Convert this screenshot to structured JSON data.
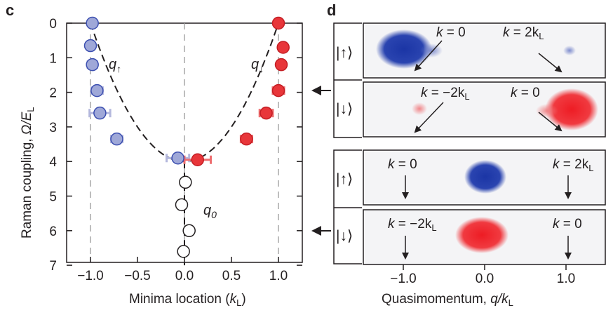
{
  "figure": {
    "panel_c_letter": "c",
    "panel_d_letter": "d",
    "colors": {
      "blue_fill": "#9fa8d8",
      "blue_edge": "#3c4fb0",
      "blue_bar": "#b4b8dd",
      "red_fill": "#e8363a",
      "red_edge": "#c41e24",
      "red_bar": "#ee6d6f",
      "open_fill": "#ffffff",
      "blue_cloud": "#1e3aa8",
      "red_cloud": "#ee1c24"
    }
  },
  "chart_data": [
    {
      "type": "scatter",
      "panel": "c",
      "xlabel": "Minima location (kL)",
      "xlabel_main": "Minima location (",
      "xlabel_k": "k",
      "xlabel_sub": "L",
      "xlabel_close": ")",
      "ylabel": "Raman coupling, Ω/EL",
      "ylabel_main": "Raman coupling, ",
      "ylabel_var": "Ω/E",
      "ylabel_sub": "L",
      "xlim": [
        -1.25,
        1.25
      ],
      "ylim": [
        7,
        0
      ],
      "y_inverted": true,
      "xticks": [
        -1.0,
        -0.5,
        0.0,
        0.5,
        1.0
      ],
      "xtick_labels": [
        "−1.0",
        "−0.5",
        "0.0",
        "0.5",
        "1.0"
      ],
      "yticks": [
        0,
        1,
        2,
        3,
        4,
        5,
        6,
        7
      ],
      "ytick_labels": [
        "0",
        "1",
        "2",
        "3",
        "4",
        "5",
        "6",
        "7"
      ],
      "dashed_verticals": [
        -1.0,
        0.0,
        1.0
      ],
      "series": [
        {
          "name": "q↑",
          "label_main": "q",
          "label_sub": "↑",
          "style": "blue",
          "points": [
            {
              "x": -0.98,
              "y": 0.0,
              "xerr": 0.02
            },
            {
              "x": -1.0,
              "y": 0.65,
              "xerr": 0.04
            },
            {
              "x": -0.98,
              "y": 1.2,
              "xerr": 0.05
            },
            {
              "x": -0.93,
              "y": 1.95,
              "xerr": 0.06
            },
            {
              "x": -0.9,
              "y": 2.6,
              "xerr": 0.11
            },
            {
              "x": -0.72,
              "y": 3.35,
              "xerr": 0.06
            },
            {
              "x": -0.07,
              "y": 3.9,
              "xerr": 0.12
            }
          ]
        },
        {
          "name": "q↓",
          "label_main": "q",
          "label_sub": "↓",
          "style": "red",
          "points": [
            {
              "x": 1.0,
              "y": 0.0,
              "xerr": 0.02
            },
            {
              "x": 1.05,
              "y": 0.7,
              "xerr": 0.03
            },
            {
              "x": 1.03,
              "y": 1.2,
              "xerr": 0.04
            },
            {
              "x": 1.0,
              "y": 1.95,
              "xerr": 0.06
            },
            {
              "x": 0.87,
              "y": 2.6,
              "xerr": 0.07
            },
            {
              "x": 0.66,
              "y": 3.35,
              "xerr": 0.06
            },
            {
              "x": 0.14,
              "y": 3.95,
              "xerr": 0.14
            }
          ]
        },
        {
          "name": "q0",
          "label_main": "q",
          "label_sub": "0",
          "style": "open",
          "points": [
            {
              "x": 0.01,
              "y": 4.6
            },
            {
              "x": -0.03,
              "y": 5.25
            },
            {
              "x": 0.05,
              "y": 6.0
            },
            {
              "x": -0.01,
              "y": 6.6
            }
          ]
        }
      ],
      "theory_curve": "dashed parabola from (±1, 0) to (0, 4), then vertical line at 0"
    },
    {
      "type": "heatmap",
      "panel": "d",
      "xlabel": "Quasimomentum, q/kL",
      "xlabel_main": "Quasimomentum, ",
      "xlabel_var": "q/k",
      "xlabel_sub": "L",
      "xticks": [
        -1.0,
        0.0,
        1.0
      ],
      "xtick_labels": [
        "−1.0",
        "0.0",
        "1.0"
      ],
      "rows": [
        {
          "state": "|↑⟩",
          "group": 1,
          "annotations": [
            {
              "k": "k",
              "text": " = 0"
            },
            {
              "k": "k",
              "text": " = 2k",
              "sub": "L"
            }
          ]
        },
        {
          "state": "|↓⟩",
          "group": 1,
          "annotations": [
            {
              "k": "k",
              "text": " = −2k",
              "sub": "L"
            },
            {
              "k": "k",
              "text": " = 0"
            }
          ]
        },
        {
          "state": "|↑⟩",
          "group": 2,
          "annotations": [
            {
              "k": "k",
              "text": " = 0"
            },
            {
              "k": "k",
              "text": " = 2k",
              "sub": "L"
            }
          ]
        },
        {
          "state": "|↓⟩",
          "group": 2,
          "annotations": [
            {
              "k": "k",
              "text": " = −2k",
              "sub": "L"
            },
            {
              "k": "k",
              "text": " = 0"
            }
          ]
        }
      ],
      "group_arrow_y": [
        2,
        6
      ]
    }
  ]
}
